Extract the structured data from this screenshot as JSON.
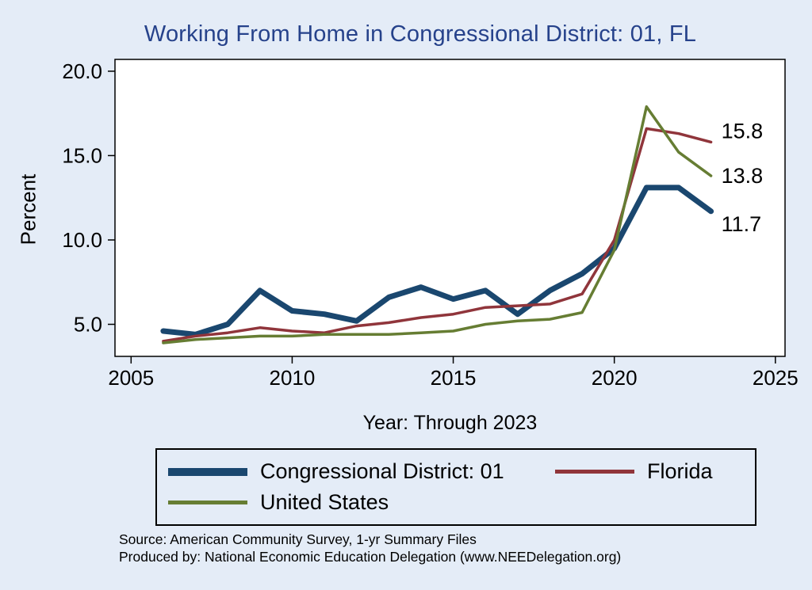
{
  "page": {
    "background": "#e4ecf7"
  },
  "title": {
    "text": "Working From Home in Congressional District: 01, FL",
    "color": "#26428b"
  },
  "chart_data": {
    "type": "line",
    "title": "Working From Home in Congressional District: 01, FL",
    "xlabel": "Year: Through 2023",
    "ylabel": "Percent",
    "xlim": [
      2004.5,
      2025.3
    ],
    "ylim": [
      3.1,
      20.7
    ],
    "xticks": [
      2005,
      2010,
      2015,
      2020,
      2025
    ],
    "yticks": [
      5,
      10,
      15,
      20
    ],
    "grid": false,
    "legend_position": "bottom",
    "x": [
      2006,
      2007,
      2008,
      2009,
      2010,
      2011,
      2012,
      2013,
      2014,
      2015,
      2016,
      2017,
      2018,
      2019,
      2020,
      2021,
      2022,
      2023
    ],
    "series": [
      {
        "name": "Congressional District: 01",
        "color": "#1a476f",
        "width": 7,
        "values": [
          4.6,
          4.4,
          5.0,
          7.0,
          5.8,
          5.6,
          5.2,
          6.6,
          7.2,
          6.5,
          7.0,
          5.6,
          7.0,
          8.0,
          9.5,
          13.1,
          13.1,
          11.7
        ],
        "end_label": "11.7",
        "label_dy": 16
      },
      {
        "name": "Florida",
        "color": "#90353b",
        "width": 3.5,
        "values": [
          4.0,
          4.3,
          4.5,
          4.8,
          4.6,
          4.5,
          4.9,
          5.1,
          5.4,
          5.6,
          6.0,
          6.1,
          6.2,
          6.8,
          10.0,
          16.6,
          16.3,
          15.8
        ],
        "end_label": "15.8",
        "label_dy": -14
      },
      {
        "name": "United States",
        "color": "#667d33",
        "width": 3.5,
        "values": [
          3.9,
          4.1,
          4.2,
          4.3,
          4.3,
          4.4,
          4.4,
          4.4,
          4.5,
          4.6,
          5.0,
          5.2,
          5.3,
          5.7,
          9.4,
          17.9,
          15.2,
          13.8
        ],
        "end_label": "13.8",
        "label_dy": 0
      }
    ]
  },
  "notes": {
    "source": "Source: American Community Survey, 1-yr Summary Files",
    "produced_by": "Produced by: National Economic Education Delegation (www.NEEDelegation.org)"
  }
}
